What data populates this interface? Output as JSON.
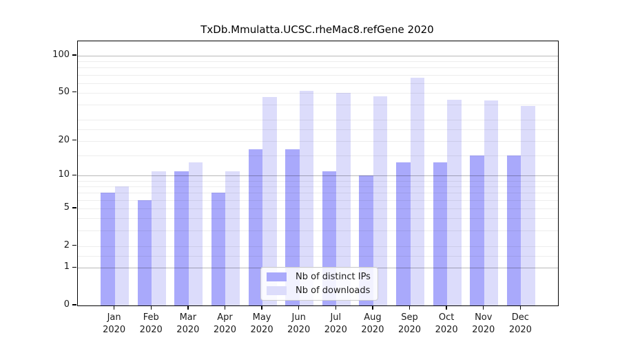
{
  "chart_data": {
    "type": "bar",
    "title": "TxDb.Mmulatta.UCSC.rheMac8.refGene 2020",
    "categories": [
      "Jan",
      "Feb",
      "Mar",
      "Apr",
      "May",
      "Jun",
      "Jul",
      "Aug",
      "Sep",
      "Oct",
      "Nov",
      "Dec"
    ],
    "x_year_label": "2020",
    "series": [
      {
        "name": "Nb of distinct IPs",
        "color": "#a9a9fb",
        "values": [
          7,
          6,
          11,
          7,
          17,
          17,
          11,
          10,
          13,
          13,
          15,
          15
        ]
      },
      {
        "name": "Nb of downloads",
        "color": "#dcdcfb",
        "values": [
          8,
          11,
          13,
          11,
          46,
          52,
          50,
          47,
          66,
          44,
          43,
          39
        ]
      }
    ],
    "y_axis": {
      "scale": "log1p",
      "ticks": [
        0,
        1,
        2,
        5,
        10,
        20,
        50,
        100
      ],
      "range_top": 129
    },
    "x_axis": {
      "months": 12
    },
    "legend": {
      "position": "lower-center"
    },
    "grid": true
  }
}
